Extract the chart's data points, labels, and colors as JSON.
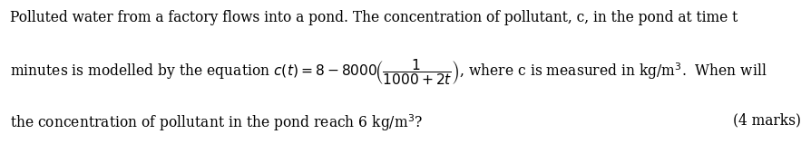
{
  "line1": "Polluted water from a factory flows into a pond. The concentration of pollutant, c, in the pond at time t",
  "line2": "minutes is modelled by the equation $c(t)=8-8000\\!\\left(\\dfrac{1}{1000+2t}\\right)$, where c is measured in kg/m$^{3}$.  When will",
  "line3_left": "the concentration of pollutant in the pond reach 6 kg/m$^{3}$?",
  "line3_right": "(4 marks)",
  "text_color": "#000000",
  "bg_color": "#ffffff",
  "fontsize": 11.2,
  "fig_width": 8.94,
  "fig_height": 1.59,
  "dpi": 100
}
